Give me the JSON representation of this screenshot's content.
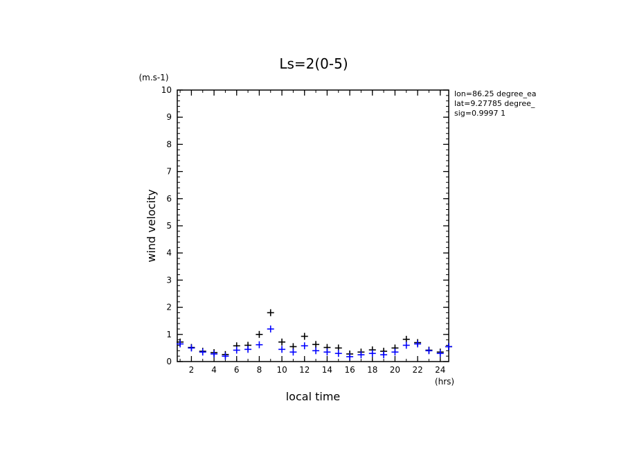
{
  "chart_data": {
    "type": "scatter",
    "title": "Ls=2(0-5)",
    "xlabel": "local time",
    "ylabel": "wind velocity",
    "x_unit": "(hrs)",
    "y_unit": "(m.s-1)",
    "xlim": [
      0.75,
      24.75
    ],
    "ylim": [
      0,
      10
    ],
    "x_ticks": [
      2,
      4,
      6,
      8,
      10,
      12,
      14,
      16,
      18,
      20,
      22,
      24
    ],
    "y_ticks": [
      0,
      1,
      2,
      3,
      4,
      5,
      6,
      7,
      8,
      9,
      10
    ],
    "grid": false,
    "info_lines": [
      "lon=86.25 degree_ea",
      "lat=9.27785 degree_",
      "sig=0.9997 1"
    ],
    "series": [
      {
        "color": "#000000",
        "marker": "plus",
        "x": [
          1,
          2,
          3,
          4,
          5,
          6,
          7,
          8,
          9,
          10,
          11,
          12,
          13,
          14,
          15,
          16,
          17,
          18,
          19,
          20,
          21,
          22,
          23,
          24,
          25
        ],
        "y": [
          0.72,
          0.52,
          0.38,
          0.33,
          0.26,
          0.58,
          0.6,
          1.0,
          1.8,
          0.72,
          0.55,
          0.93,
          0.63,
          0.52,
          0.5,
          0.28,
          0.35,
          0.43,
          0.38,
          0.5,
          0.82,
          0.7,
          0.42,
          0.35,
          0.55
        ]
      },
      {
        "color": "#0000ff",
        "marker": "plus",
        "x": [
          1,
          2,
          3,
          4,
          5,
          6,
          7,
          8,
          9,
          10,
          11,
          12,
          13,
          14,
          15,
          16,
          17,
          18,
          19,
          20,
          21,
          22,
          23,
          24,
          25
        ],
        "y": [
          0.65,
          0.5,
          0.35,
          0.28,
          0.2,
          0.42,
          0.45,
          0.62,
          1.2,
          0.45,
          0.35,
          0.58,
          0.4,
          0.35,
          0.3,
          0.18,
          0.25,
          0.3,
          0.25,
          0.35,
          0.6,
          0.65,
          0.4,
          0.3,
          0.55
        ]
      }
    ]
  }
}
